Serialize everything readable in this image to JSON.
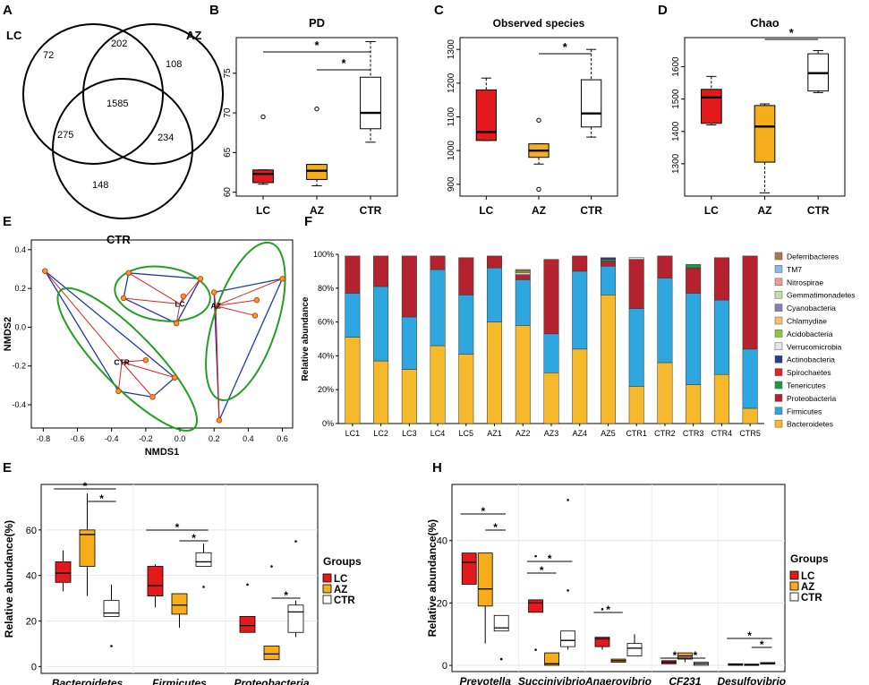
{
  "panel_labels": {
    "A": "A",
    "B": "B",
    "C": "C",
    "D": "D",
    "E1": "E",
    "F": "F",
    "E2": "E",
    "H": "H"
  },
  "colors": {
    "LC": "#e31a1c",
    "AZ": "#f5ad1c",
    "CTR": "#ffffff",
    "hull": "#203aa0",
    "ellipse": "#22a022",
    "spoke": "#dd2020",
    "point": "#f59a1c"
  },
  "chart_data": [
    {
      "id": "venn",
      "type": "venn",
      "sets": [
        "LC",
        "AZ",
        "CTR"
      ],
      "regions": {
        "LC_only": "72",
        "AZ_only": "108",
        "CTR_only": "148",
        "LC_AZ": "202",
        "LC_CTR": "275",
        "AZ_CTR": "234",
        "all": "1585"
      }
    },
    {
      "id": "pd",
      "type": "box",
      "title": "PD",
      "categories": [
        "LC",
        "AZ",
        "CTR"
      ],
      "ylim": [
        59.5,
        79.5
      ],
      "yticks": [
        60,
        65,
        70,
        75
      ],
      "boxes": [
        {
          "group": "LC",
          "min": 61.0,
          "q1": 61.2,
          "median": 62.3,
          "q3": 62.8,
          "max": 62.8,
          "outliers": [
            69.5
          ]
        },
        {
          "group": "AZ",
          "min": 60.8,
          "q1": 61.6,
          "median": 62.7,
          "q3": 63.5,
          "max": 63.5,
          "outliers": [
            70.5
          ]
        },
        {
          "group": "CTR",
          "min": 66.3,
          "q1": 68.0,
          "median": 70.0,
          "q3": 74.5,
          "max": 79.0,
          "outliers": []
        }
      ],
      "significance": [
        {
          "from": "LC",
          "to": "CTR",
          "label": "*"
        },
        {
          "from": "AZ",
          "to": "CTR",
          "label": "*"
        }
      ]
    },
    {
      "id": "observed",
      "type": "box",
      "title": "Observed species",
      "categories": [
        "LC",
        "AZ",
        "CTR"
      ],
      "ylim": [
        865,
        1335
      ],
      "yticks": [
        900,
        1000,
        1100,
        1200,
        1300
      ],
      "boxes": [
        {
          "group": "LC",
          "min": 1030,
          "q1": 1030,
          "median": 1055,
          "q3": 1180,
          "max": 1215,
          "outliers": []
        },
        {
          "group": "AZ",
          "min": 960,
          "q1": 980,
          "median": 1000,
          "q3": 1020,
          "max": 1020,
          "outliers": [
            1090,
            885
          ]
        },
        {
          "group": "CTR",
          "min": 1040,
          "q1": 1070,
          "median": 1110,
          "q3": 1210,
          "max": 1300,
          "outliers": []
        }
      ],
      "significance": [
        {
          "from": "AZ",
          "to": "CTR",
          "label": "*"
        }
      ]
    },
    {
      "id": "chao",
      "type": "box",
      "title": "Chao",
      "categories": [
        "LC",
        "AZ",
        "CTR"
      ],
      "ylim": [
        1200,
        1690
      ],
      "yticks": [
        1300,
        1400,
        1500,
        1600
      ],
      "boxes": [
        {
          "group": "LC",
          "min": 1420,
          "q1": 1425,
          "median": 1505,
          "q3": 1530,
          "max": 1570,
          "outliers": []
        },
        {
          "group": "AZ",
          "min": 1210,
          "q1": 1305,
          "median": 1415,
          "q3": 1480,
          "max": 1485,
          "outliers": []
        },
        {
          "group": "CTR",
          "min": 1520,
          "q1": 1525,
          "median": 1580,
          "q3": 1640,
          "max": 1650,
          "outliers": []
        }
      ],
      "significance": [
        {
          "from": "AZ",
          "to": "CTR",
          "label": "*"
        }
      ]
    },
    {
      "id": "nmds",
      "type": "scatter",
      "xlabel": "NMDS1",
      "ylabel": "NMDS2",
      "xlim": [
        -0.87,
        0.66
      ],
      "ylim": [
        -0.52,
        0.45
      ],
      "xticks": [
        "-0.8",
        "-0.6",
        "-0.4",
        "-0.2",
        "0.0",
        "0.2",
        "0.4",
        "0.6"
      ],
      "yticks": [
        "0.4",
        "0.2",
        "0.0",
        "-0.2",
        "-0.4"
      ],
      "groups": [
        {
          "name": "LC",
          "centroid": [
            0.0,
            0.12
          ],
          "points": [
            [
              -0.3,
              0.28
            ],
            [
              -0.33,
              0.15
            ],
            [
              0.12,
              0.25
            ],
            [
              0.02,
              0.16
            ],
            [
              -0.02,
              0.02
            ]
          ]
        },
        {
          "name": "AZ",
          "centroid": [
            0.21,
            0.11
          ],
          "points": [
            [
              0.2,
              0.18
            ],
            [
              0.45,
              0.14
            ],
            [
              0.44,
              0.06
            ],
            [
              0.6,
              0.25
            ],
            [
              0.23,
              -0.48
            ]
          ]
        },
        {
          "name": "CTR",
          "centroid": [
            -0.34,
            -0.18
          ],
          "points": [
            [
              -0.79,
              0.29
            ],
            [
              -0.2,
              -0.17
            ],
            [
              -0.36,
              -0.33
            ],
            [
              -0.16,
              -0.36
            ],
            [
              -0.03,
              -0.26
            ]
          ]
        }
      ]
    },
    {
      "id": "composition",
      "type": "stacked-bar",
      "ylabel": "Relative abundance",
      "yticks": [
        "0%",
        "20%",
        "40%",
        "60%",
        "80%",
        "100%"
      ],
      "categories": [
        "LC1",
        "LC2",
        "LC3",
        "LC4",
        "LC5",
        "AZ1",
        "AZ2",
        "AZ3",
        "AZ4",
        "AZ5",
        "CTR1",
        "CTR2",
        "CTR3",
        "CTR4",
        "CTR5"
      ],
      "series": [
        {
          "name": "Bacteroidetes",
          "color": "#f5b92b",
          "values": [
            51,
            37,
            32,
            46,
            41,
            60,
            58,
            30,
            44,
            76,
            22,
            36,
            23,
            29,
            9
          ]
        },
        {
          "name": "Firmicutes",
          "color": "#2ea6df",
          "values": [
            26,
            44,
            31,
            45,
            35,
            32,
            27,
            23,
            46,
            17,
            46,
            50,
            54,
            44,
            35
          ]
        },
        {
          "name": "Proteobacteria",
          "color": "#b3222d",
          "values": [
            22,
            18,
            36,
            8,
            22,
            7,
            3,
            44,
            9,
            3,
            29,
            13,
            15,
            25,
            55
          ]
        },
        {
          "name": "Tenericutes",
          "color": "#1a9b46",
          "values": [
            0,
            0,
            0,
            0,
            0,
            0,
            0,
            0,
            0,
            1,
            0,
            0,
            2,
            0,
            0
          ]
        },
        {
          "name": "Spirochaetes",
          "color": "#e32222",
          "values": [
            0,
            0,
            0,
            0,
            0,
            0,
            0,
            0,
            0,
            0,
            0,
            0,
            0,
            0,
            0
          ]
        },
        {
          "name": "Actinobacteria",
          "color": "#283c8c",
          "values": [
            0,
            0,
            0,
            0,
            0,
            0,
            0,
            0,
            0,
            1,
            0,
            0,
            0,
            0,
            0
          ]
        },
        {
          "name": "Verrucomicrobia",
          "color": "#e8e8e8",
          "values": [
            0,
            0,
            0,
            0,
            0,
            0,
            1,
            0,
            0,
            0,
            1,
            0,
            0,
            0,
            0
          ]
        },
        {
          "name": "Acidobacteria",
          "color": "#8fc43e",
          "values": [
            0,
            0,
            0,
            0,
            0,
            0,
            1,
            0,
            0,
            0,
            0,
            0,
            0,
            0,
            0
          ]
        },
        {
          "name": "Chlamydiae",
          "color": "#f5c06b",
          "values": [
            0,
            0,
            0,
            0,
            0,
            0,
            0,
            0,
            0,
            0,
            0,
            0,
            0,
            0,
            0
          ]
        },
        {
          "name": "Cyanobacteria",
          "color": "#8a7ab5",
          "values": [
            0,
            0,
            0,
            0,
            0,
            0,
            0,
            0,
            0,
            0,
            0,
            0,
            0,
            0,
            0
          ]
        },
        {
          "name": "Gemmatimonadetes",
          "color": "#c5e0a5",
          "values": [
            0,
            0,
            0,
            0,
            0,
            0,
            0,
            0,
            0,
            0,
            0,
            0,
            0,
            0,
            0
          ]
        },
        {
          "name": "Nitrospirae",
          "color": "#f29a9a",
          "values": [
            0,
            0,
            0,
            0,
            0,
            0,
            0,
            0,
            0,
            0,
            0,
            0,
            0,
            0,
            0
          ]
        },
        {
          "name": "TM7",
          "color": "#8bb8e8",
          "values": [
            0,
            0,
            0,
            0,
            0,
            0,
            0,
            0,
            0,
            0,
            0,
            0,
            0,
            0,
            0
          ]
        },
        {
          "name": "Deferribacteres",
          "color": "#a9794a",
          "values": [
            0,
            0,
            0,
            0,
            0,
            0,
            1,
            0,
            0,
            0,
            0,
            0,
            0,
            0,
            0
          ]
        }
      ]
    },
    {
      "id": "phyla",
      "type": "box",
      "ylabel": "Relative abundance(%)",
      "legend_title": "Groups",
      "legend": [
        "LC",
        "AZ",
        "CTR"
      ],
      "ylim": [
        -3,
        80
      ],
      "yticks": [
        0,
        20,
        40,
        60
      ],
      "categories": [
        "Bacteroidetes",
        "Firmicutes",
        "Proteobacteria"
      ],
      "boxes": [
        [
          {
            "group": "LC",
            "min": 33,
            "q1": 37,
            "median": 41,
            "q3": 46,
            "max": 51,
            "outliers": []
          },
          {
            "group": "AZ",
            "min": 31,
            "q1": 44,
            "median": 58,
            "q3": 60,
            "max": 76,
            "outliers": []
          },
          {
            "group": "CTR",
            "min": 22,
            "q1": 22,
            "median": 23.5,
            "q3": 29,
            "max": 36,
            "outliers": [
              9
            ]
          }
        ],
        [
          {
            "group": "LC",
            "min": 26,
            "q1": 31,
            "median": 35.5,
            "q3": 44,
            "max": 45,
            "outliers": []
          },
          {
            "group": "AZ",
            "min": 17,
            "q1": 23,
            "median": 27,
            "q3": 32,
            "max": 32,
            "outliers": []
          },
          {
            "group": "CTR",
            "min": 44,
            "q1": 44,
            "median": 46,
            "q3": 50,
            "max": 54,
            "outliers": [
              35
            ]
          }
        ],
        [
          {
            "group": "LC",
            "min": 15,
            "q1": 15,
            "median": 18,
            "q3": 22,
            "max": 22,
            "outliers": [
              36
            ]
          },
          {
            "group": "AZ",
            "min": 3,
            "q1": 3,
            "median": 5.5,
            "q3": 9,
            "max": 9,
            "outliers": [
              44
            ]
          },
          {
            "group": "CTR",
            "min": 13,
            "q1": 15,
            "median": 24,
            "q3": 27,
            "max": 29,
            "outliers": [
              55
            ]
          }
        ]
      ],
      "significance": [
        {
          "category": "Bacteroidetes",
          "from": "LC",
          "to": "CTR",
          "label": "*"
        },
        {
          "category": "Bacteroidetes",
          "from": "AZ",
          "to": "CTR",
          "label": "*"
        },
        {
          "category": "Firmicutes",
          "from": "LC",
          "to": "CTR",
          "label": "*"
        },
        {
          "category": "Firmicutes",
          "from": "AZ",
          "to": "CTR",
          "label": "*"
        },
        {
          "category": "Proteobacteria",
          "from": "AZ",
          "to": "CTR",
          "label": "*"
        }
      ]
    },
    {
      "id": "genera",
      "type": "box",
      "ylabel": "Relative abundance(%)",
      "legend_title": "Groups",
      "legend": [
        "LC",
        "AZ",
        "CTR"
      ],
      "ylim": [
        -2,
        58
      ],
      "yticks": [
        0,
        20,
        40
      ],
      "categories": [
        "Prevotella",
        "Succinivibrio",
        "Anaerovibrio",
        "CF231",
        "Desulfovibrio"
      ],
      "boxes": [
        [
          {
            "group": "LC",
            "min": 26,
            "q1": 26,
            "median": 33,
            "q3": 36,
            "max": 36,
            "outliers": []
          },
          {
            "group": "AZ",
            "min": 7,
            "q1": 19,
            "median": 24.5,
            "q3": 36,
            "max": 36,
            "outliers": []
          },
          {
            "group": "CTR",
            "min": 11,
            "q1": 11,
            "median": 12,
            "q3": 16,
            "max": 16,
            "outliers": [
              2
            ]
          }
        ],
        [
          {
            "group": "LC",
            "min": 17,
            "q1": 17,
            "median": 20,
            "q3": 21,
            "max": 21,
            "outliers": [
              35,
              5
            ]
          },
          {
            "group": "AZ",
            "min": 0,
            "q1": 0,
            "median": 0.5,
            "q3": 4,
            "max": 4,
            "outliers": []
          },
          {
            "group": "CTR",
            "min": 5,
            "q1": 6,
            "median": 8,
            "q3": 11,
            "max": 11,
            "outliers": [
              53,
              24
            ]
          }
        ],
        [
          {
            "group": "LC",
            "min": 5,
            "q1": 6,
            "median": 8.5,
            "q3": 9,
            "max": 9,
            "outliers": [
              18
            ]
          },
          {
            "group": "AZ",
            "min": 1,
            "q1": 1,
            "median": 1.5,
            "q3": 2,
            "max": 2,
            "outliers": []
          },
          {
            "group": "CTR",
            "min": 3,
            "q1": 3,
            "median": 5.5,
            "q3": 7,
            "max": 10,
            "outliers": []
          }
        ],
        [
          {
            "group": "LC",
            "min": 0.5,
            "q1": 0.5,
            "median": 1,
            "q3": 1.5,
            "max": 1.5,
            "outliers": []
          },
          {
            "group": "AZ",
            "min": 1,
            "q1": 2,
            "median": 3,
            "q3": 4,
            "max": 4,
            "outliers": []
          },
          {
            "group": "CTR",
            "min": 0,
            "q1": 0,
            "median": 0.5,
            "q3": 1,
            "max": 1,
            "outliers": []
          }
        ],
        [
          {
            "group": "LC",
            "min": 0,
            "q1": 0,
            "median": 0.3,
            "q3": 0.5,
            "max": 0.5,
            "outliers": []
          },
          {
            "group": "AZ",
            "min": 0,
            "q1": 0,
            "median": 0.2,
            "q3": 0.4,
            "max": 0.4,
            "outliers": []
          },
          {
            "group": "CTR",
            "min": 0.4,
            "q1": 0.4,
            "median": 0.6,
            "q3": 0.9,
            "max": 0.9,
            "outliers": []
          }
        ]
      ],
      "significance": [
        {
          "category": "Prevotella",
          "from": "LC",
          "to": "CTR",
          "label": "*"
        },
        {
          "category": "Prevotella",
          "from": "AZ",
          "to": "CTR",
          "label": "*"
        },
        {
          "category": "Succinivibrio",
          "from": "LC",
          "to": "CTR",
          "label": "*"
        },
        {
          "category": "Succinivibrio",
          "from": "LC",
          "to": "AZ",
          "label": "*"
        },
        {
          "category": "Anaerovibrio",
          "from": "LC",
          "to": "AZ",
          "label": "*"
        },
        {
          "category": "CF231",
          "from": "LC",
          "to": "AZ",
          "label": "*"
        },
        {
          "category": "CF231",
          "from": "AZ",
          "to": "CTR",
          "label": "*"
        },
        {
          "category": "Desulfovibrio",
          "from": "LC",
          "to": "CTR",
          "label": "*"
        },
        {
          "category": "Desulfovibrio",
          "from": "AZ",
          "to": "CTR",
          "label": "*"
        }
      ]
    }
  ]
}
